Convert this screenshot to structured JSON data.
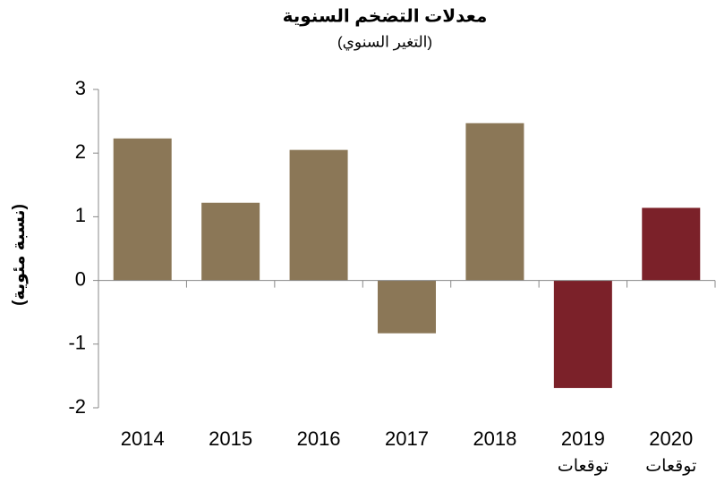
{
  "chart_data": {
    "type": "bar",
    "title": "معدلات التضخم السنوية",
    "subtitle": "(التغير السنوي)",
    "y_label": "(نسبة مئوية)",
    "categories": [
      "2014",
      "2015",
      "2016",
      "2017",
      "2018",
      "2019",
      "2020"
    ],
    "category_notes": [
      null,
      null,
      null,
      null,
      null,
      "توقعات",
      "توقعات"
    ],
    "values": [
      2.23,
      1.22,
      2.05,
      -0.83,
      2.47,
      -1.69,
      1.14
    ],
    "colors": [
      "#8b7757",
      "#8b7757",
      "#8b7757",
      "#8b7757",
      "#8b7757",
      "#7b2129",
      "#7b2129"
    ],
    "ylim": [
      -2,
      3
    ],
    "yticks": [
      -2,
      -1,
      0,
      1,
      2,
      3
    ],
    "grid": false
  }
}
